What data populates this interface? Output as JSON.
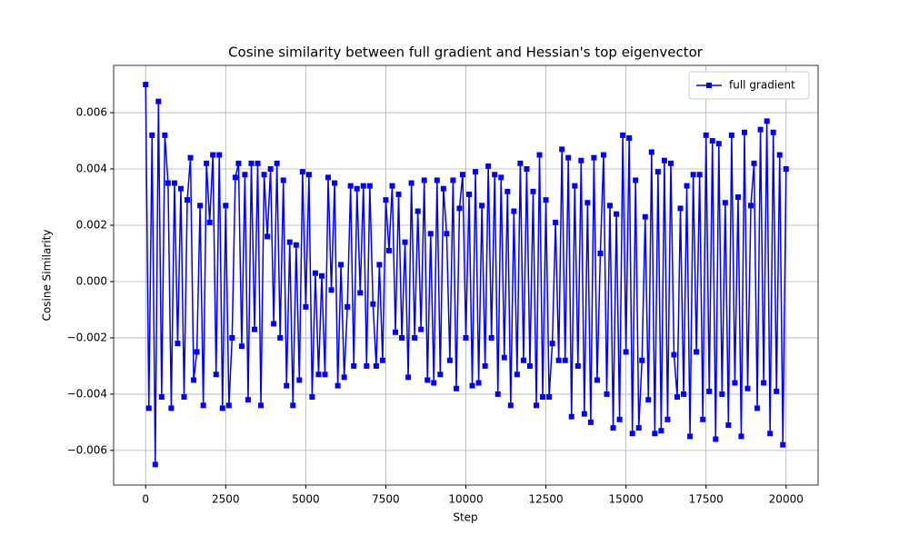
{
  "chart_data": {
    "type": "line",
    "title": "Cosine similarity between full gradient and Hessian's top eigenvector",
    "x_label": "Step",
    "y_label": "Cosine Similarity",
    "x": [
      0,
      100,
      200,
      300,
      400,
      500,
      600,
      700,
      800,
      900,
      1000,
      1100,
      1200,
      1300,
      1400,
      1500,
      1600,
      1700,
      1800,
      1900,
      2000,
      2100,
      2200,
      2300,
      2400,
      2500,
      2600,
      2700,
      2800,
      2900,
      3000,
      3100,
      3200,
      3300,
      3400,
      3500,
      3600,
      3700,
      3800,
      3900,
      4000,
      4100,
      4200,
      4300,
      4400,
      4500,
      4600,
      4700,
      4800,
      4900,
      5000,
      5100,
      5200,
      5300,
      5400,
      5500,
      5600,
      5700,
      5800,
      5900,
      6000,
      6100,
      6200,
      6300,
      6400,
      6500,
      6600,
      6700,
      6800,
      6900,
      7000,
      7100,
      7200,
      7300,
      7400,
      7500,
      7600,
      7700,
      7800,
      7900,
      8000,
      8100,
      8200,
      8300,
      8400,
      8500,
      8600,
      8700,
      8800,
      8900,
      9000,
      9100,
      9200,
      9300,
      9400,
      9500,
      9600,
      9700,
      9800,
      9900,
      10000,
      10100,
      10200,
      10300,
      10400,
      10500,
      10600,
      10700,
      10800,
      10900,
      11000,
      11100,
      11200,
      11300,
      11400,
      11500,
      11600,
      11700,
      11800,
      11900,
      12000,
      12100,
      12200,
      12300,
      12400,
      12500,
      12600,
      12700,
      12800,
      12900,
      13000,
      13100,
      13200,
      13300,
      13400,
      13500,
      13600,
      13700,
      13800,
      13900,
      14000,
      14100,
      14200,
      14300,
      14400,
      14500,
      14600,
      14700,
      14800,
      14900,
      15000,
      15100,
      15200,
      15300,
      15400,
      15500,
      15600,
      15700,
      15800,
      15900,
      16000,
      16100,
      16200,
      16300,
      16400,
      16500,
      16600,
      16700,
      16800,
      16900,
      17000,
      17100,
      17200,
      17300,
      17400,
      17500,
      17600,
      17700,
      17800,
      17900,
      18000,
      18100,
      18200,
      18300,
      18400,
      18500,
      18600,
      18700,
      18800,
      18900,
      19000,
      19100,
      19200,
      19300,
      19400,
      19500,
      19600,
      19700,
      19800,
      19900,
      20000
    ],
    "series": [
      {
        "name": "full gradient",
        "color": "#0000ff",
        "marker": "square",
        "values": [
          0.007,
          -0.0045,
          0.0052,
          -0.0065,
          0.0064,
          -0.0041,
          0.0052,
          0.0035,
          -0.0045,
          0.0035,
          -0.0022,
          0.0033,
          -0.0041,
          0.0029,
          0.0044,
          -0.0035,
          -0.0025,
          0.0027,
          -0.0044,
          0.0042,
          0.0021,
          0.0045,
          -0.0033,
          0.0045,
          -0.0045,
          0.0027,
          -0.0044,
          -0.002,
          0.0037,
          0.0042,
          -0.0023,
          0.0038,
          -0.0042,
          0.0042,
          -0.0017,
          0.0042,
          -0.0044,
          0.0038,
          0.0016,
          0.004,
          -0.0015,
          0.0042,
          -0.002,
          0.0036,
          -0.0037,
          0.0014,
          -0.0044,
          0.0013,
          -0.0035,
          0.0039,
          -0.0009,
          0.0038,
          -0.0041,
          0.0003,
          -0.0033,
          0.0002,
          -0.0033,
          0.0037,
          -0.0003,
          0.0035,
          -0.0037,
          0.0006,
          -0.0034,
          -0.0009,
          0.0034,
          -0.003,
          0.0033,
          -0.0004,
          0.0034,
          -0.003,
          0.0034,
          -0.0008,
          -0.003,
          0.0006,
          -0.0028,
          0.0029,
          0.0011,
          0.0034,
          -0.0018,
          0.0031,
          -0.002,
          0.0014,
          -0.0034,
          0.0035,
          -0.002,
          0.0025,
          -0.0017,
          0.0036,
          -0.0035,
          0.0017,
          -0.0036,
          0.0036,
          -0.0033,
          0.0033,
          0.0017,
          -0.0028,
          0.0036,
          -0.0038,
          0.0026,
          0.0038,
          -0.002,
          0.0031,
          -0.0037,
          0.0039,
          -0.0036,
          0.0027,
          -0.003,
          0.0041,
          -0.002,
          0.0038,
          -0.004,
          0.0037,
          -0.0027,
          0.0032,
          -0.0044,
          0.0025,
          -0.0033,
          0.0042,
          -0.0028,
          0.004,
          -0.003,
          0.0032,
          -0.0044,
          0.0045,
          -0.0041,
          0.0029,
          -0.0041,
          -0.0022,
          0.0021,
          -0.0028,
          0.0047,
          -0.0028,
          0.0044,
          -0.0048,
          0.0034,
          -0.003,
          0.0043,
          -0.0047,
          0.0028,
          -0.005,
          0.0044,
          -0.0035,
          0.001,
          0.0045,
          -0.004,
          0.0027,
          -0.0052,
          0.0024,
          -0.0049,
          0.0052,
          -0.0025,
          0.0051,
          -0.0054,
          0.0036,
          -0.0052,
          -0.0028,
          0.0023,
          -0.0042,
          0.0046,
          -0.0054,
          0.0039,
          -0.0053,
          0.0043,
          -0.0049,
          0.0042,
          -0.0026,
          -0.0041,
          0.0026,
          -0.004,
          0.0034,
          -0.0055,
          0.0038,
          -0.0025,
          0.0038,
          -0.0049,
          0.0052,
          -0.0039,
          0.005,
          -0.0056,
          0.0049,
          -0.004,
          0.0028,
          -0.0051,
          0.0052,
          -0.0036,
          0.003,
          -0.0055,
          0.0053,
          -0.0038,
          0.0027,
          0.0042,
          -0.0045,
          0.0054,
          -0.0036,
          0.0057,
          -0.0054,
          0.0053,
          -0.0039,
          0.0045,
          -0.0058,
          0.004
        ]
      }
    ],
    "xlim": [
      -1000,
      21000
    ],
    "xticks": [
      0,
      2500,
      5000,
      7500,
      10000,
      12500,
      15000,
      17500,
      20000
    ],
    "ylim": [
      -0.00723,
      0.00768
    ],
    "yticks": [
      {
        "value": -0.006,
        "label": "−0.006"
      },
      {
        "value": -0.004,
        "label": "−0.004"
      },
      {
        "value": -0.002,
        "label": "−0.002"
      },
      {
        "value": 0,
        "label": "0.000"
      },
      {
        "value": 0.002,
        "label": "0.002"
      },
      {
        "value": 0.004,
        "label": "0.004"
      },
      {
        "value": 0.006,
        "label": "0.006"
      }
    ],
    "grid": true,
    "legend": "upper right"
  }
}
